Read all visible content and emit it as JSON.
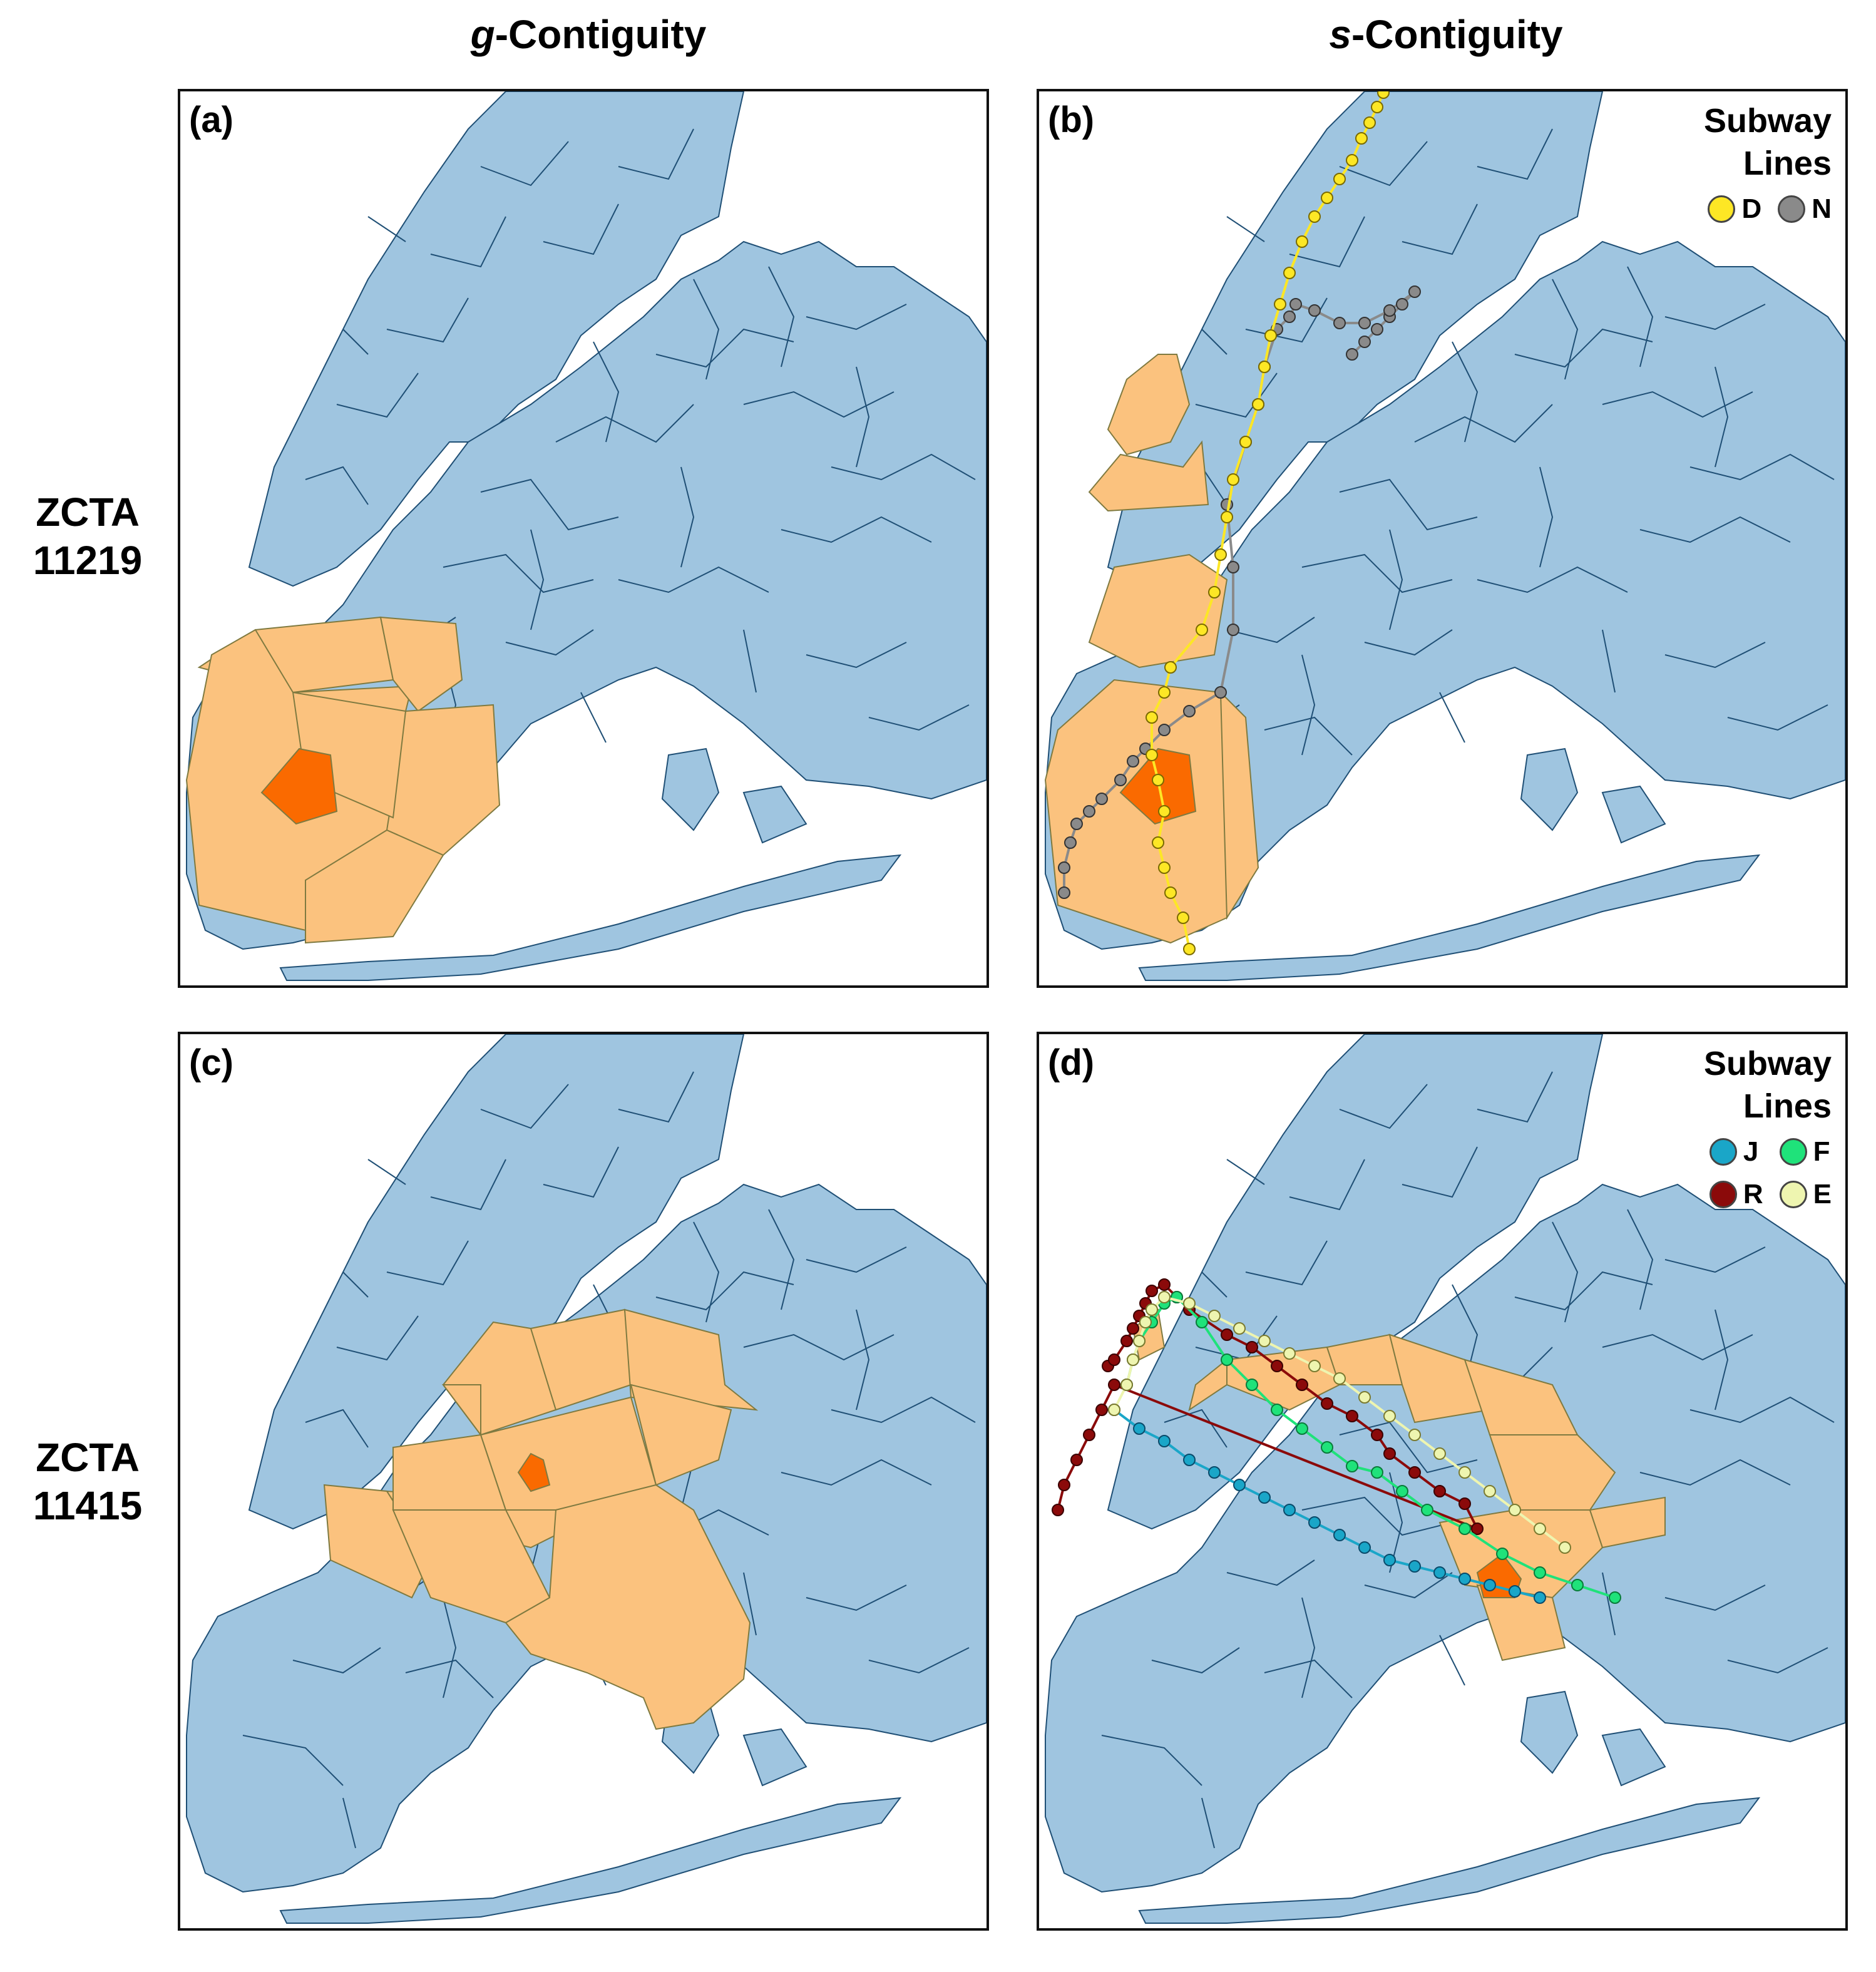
{
  "columns": {
    "left": {
      "prefix": "g",
      "suffix": "-Contiguity"
    },
    "right": {
      "prefix": "s",
      "suffix": "-Contiguity"
    }
  },
  "rows": [
    {
      "title": "ZCTA",
      "code": "11219"
    },
    {
      "title": "ZCTA",
      "code": "11415"
    }
  ],
  "colors": {
    "background_zcta": "#9fc5e0",
    "zcta_border": "#1f4f75",
    "neighbor": "#fbc27e",
    "target": "#fa6a00",
    "water": "#ffffff",
    "neighbor_border": "#7f7a40"
  },
  "panels": [
    {
      "label": "(a)",
      "legend": null
    },
    {
      "label": "(b)",
      "legend": {
        "title_line1": "Subway",
        "title_line2": "Lines",
        "items": [
          {
            "name": "D",
            "color": "#fde725"
          },
          {
            "name": "N",
            "color": "#8a8a8a"
          }
        ]
      }
    },
    {
      "label": "(c)",
      "legend": null
    },
    {
      "label": "(d)",
      "legend": {
        "title_line1": "Subway",
        "title_line2": "Lines",
        "items": [
          {
            "name": "J",
            "color": "#1aa6c8"
          },
          {
            "name": "F",
            "color": "#1fe27a"
          },
          {
            "name": "R",
            "color": "#8b0a0a"
          },
          {
            "name": "E",
            "color": "#eef5b0"
          }
        ]
      }
    }
  ]
}
